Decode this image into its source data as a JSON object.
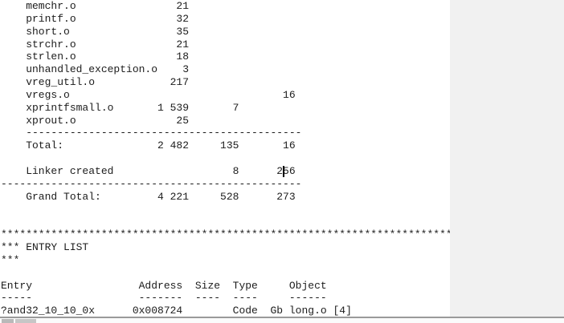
{
  "document": {
    "lines": [
      "    memchr.o                21",
      "    printf.o                32",
      "    short.o                 35",
      "    strchr.o                21",
      "    strlen.o                18",
      "    unhandled_exception.o    3",
      "    vreg_util.o            217",
      "    vregs.o                                  16",
      "    xprintfsmall.o       1 539       7",
      "    xprout.o                25",
      "    --------------------------------------------",
      "    Total:               2 482     135       16",
      "",
      "    Linker created                   8      256",
      "------------------------------------------------",
      "    Grand Total:         4 221     528      273",
      "",
      "",
      "************************************************************************",
      "*** ENTRY LIST",
      "***",
      "",
      "Entry                 Address  Size  Type     Object",
      "-----                 -------  ----  ----     ------",
      "?and32_10_10_0x      0x008724        Code  Gb long.o [4]"
    ]
  },
  "module_summary": {
    "rows": [
      {
        "module": "memchr.o",
        "col1": "21",
        "col2": "",
        "col3": ""
      },
      {
        "module": "printf.o",
        "col1": "32",
        "col2": "",
        "col3": ""
      },
      {
        "module": "short.o",
        "col1": "35",
        "col2": "",
        "col3": ""
      },
      {
        "module": "strchr.o",
        "col1": "21",
        "col2": "",
        "col3": ""
      },
      {
        "module": "strlen.o",
        "col1": "18",
        "col2": "",
        "col3": ""
      },
      {
        "module": "unhandled_exception.o",
        "col1": "3",
        "col2": "",
        "col3": ""
      },
      {
        "module": "vreg_util.o",
        "col1": "217",
        "col2": "",
        "col3": ""
      },
      {
        "module": "vregs.o",
        "col1": "",
        "col2": "",
        "col3": "16"
      },
      {
        "module": "xprintfsmall.o",
        "col1": "1 539",
        "col2": "7",
        "col3": ""
      },
      {
        "module": "xprout.o",
        "col1": "25",
        "col2": "",
        "col3": ""
      }
    ],
    "total": {
      "label": "Total:",
      "col1": "2 482",
      "col2": "135",
      "col3": "16"
    },
    "linker_created": {
      "label": "Linker created",
      "col1": "",
      "col2": "8",
      "col3": "256"
    },
    "grand_total": {
      "label": "Grand Total:",
      "col1": "4 221",
      "col2": "528",
      "col3": "273"
    }
  },
  "entry_list": {
    "section_title": "*** ENTRY LIST",
    "headers": [
      "Entry",
      "Address",
      "Size",
      "Type",
      "Object"
    ],
    "rows": [
      {
        "entry": "?and32_10_10_0x",
        "address": "0x008724",
        "size": "",
        "type": "Code",
        "scope": "Gb",
        "object": "long.o [4]"
      }
    ]
  },
  "colors": {
    "text": "#1c1c1c",
    "doc_background": "#ffffff",
    "right_panel": "#f1f1f1",
    "bottom_divider": "#9a9a9a",
    "bottom_strip": "#fbfbfb",
    "caret": "#000000"
  }
}
